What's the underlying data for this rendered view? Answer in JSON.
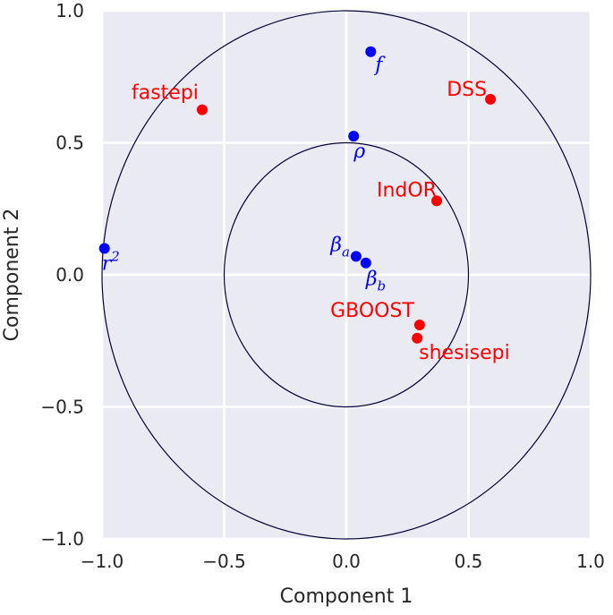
{
  "chart_data": {
    "type": "scatter",
    "title": "",
    "xlabel": "Component 1",
    "ylabel": "Component 2",
    "xlim": [
      -1.0,
      1.0
    ],
    "ylim": [
      -1.0,
      1.0
    ],
    "xticks": [
      -1.0,
      -0.5,
      0.0,
      0.5,
      1.0
    ],
    "yticks": [
      -1.0,
      -0.5,
      0.0,
      0.5,
      1.0
    ],
    "xtick_labels": [
      "−1.0",
      "−0.5",
      "0.0",
      "0.5",
      "1.0"
    ],
    "ytick_labels": [
      "−1.0",
      "−0.5",
      "0.0",
      "0.5",
      "1.0"
    ],
    "grid": true,
    "circles": [
      {
        "center": [
          0,
          0
        ],
        "radius": 1.0
      },
      {
        "center": [
          0,
          0
        ],
        "radius": 0.5
      }
    ],
    "series": [
      {
        "color": "#ff0000",
        "points": [
          {
            "label": "fastepi",
            "x": -0.59,
            "y": 0.625
          },
          {
            "label": "DSS",
            "x": 0.59,
            "y": 0.665
          },
          {
            "label": "IndOR",
            "x": 0.37,
            "y": 0.28
          },
          {
            "label": "GBOOST",
            "x": 0.3,
            "y": -0.19
          },
          {
            "label": "shesisepi",
            "x": 0.29,
            "y": -0.24
          }
        ]
      },
      {
        "color": "#0000ff",
        "points": [
          {
            "label": "f",
            "x": 0.1,
            "y": 0.845
          },
          {
            "label": "ρ",
            "x": 0.03,
            "y": 0.525
          },
          {
            "label": "r2",
            "label_base": "r",
            "label_sup": "2",
            "x": -0.99,
            "y": 0.1
          },
          {
            "label": "βa",
            "label_base": "β",
            "label_sub": "a",
            "x": 0.04,
            "y": 0.07
          },
          {
            "label": "βb",
            "label_base": "β",
            "label_sub": "b",
            "x": 0.08,
            "y": 0.045
          }
        ]
      }
    ]
  }
}
